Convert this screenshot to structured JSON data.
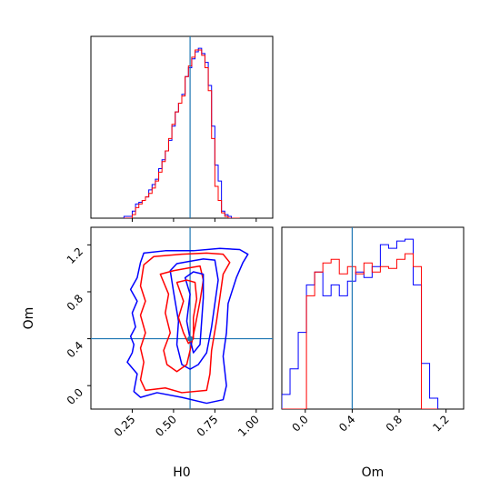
{
  "chart_data": {
    "type": "corner",
    "parameters": [
      "H0",
      "Om"
    ],
    "truths": {
      "H0": 0.6,
      "Om": 0.4
    },
    "colors": {
      "series_a": "#0000ff",
      "series_b": "#ff0000",
      "truth": "#1f77b4"
    },
    "axes": {
      "H0": {
        "range": [
          0.0,
          1.1
        ],
        "ticks": [
          0.25,
          0.5,
          0.75,
          1.0
        ],
        "tick_labels": [
          "0.25",
          "0.50",
          "0.75",
          "1.00"
        ],
        "label": "H0"
      },
      "Om": {
        "range": [
          -0.2,
          1.35
        ],
        "ticks": [
          0.0,
          0.4,
          0.8,
          1.2
        ],
        "tick_labels": [
          "0.0",
          "0.4",
          "0.8",
          "1.2"
        ],
        "label": "Om"
      }
    },
    "hist_h0": {
      "edges": [
        0.2,
        0.25,
        0.27,
        0.29,
        0.31,
        0.33,
        0.35,
        0.37,
        0.39,
        0.41,
        0.43,
        0.45,
        0.47,
        0.49,
        0.51,
        0.53,
        0.55,
        0.57,
        0.59,
        0.61,
        0.63,
        0.65,
        0.67,
        0.69,
        0.71,
        0.73,
        0.75,
        0.77,
        0.79,
        0.81,
        0.83,
        0.85,
        0.87,
        0.9
      ],
      "series": [
        {
          "color": "series_a",
          "counts": [
            0.01,
            0.04,
            0.08,
            0.09,
            0.1,
            0.12,
            0.16,
            0.19,
            0.22,
            0.28,
            0.33,
            0.38,
            0.44,
            0.52,
            0.6,
            0.65,
            0.7,
            0.8,
            0.85,
            0.9,
            0.94,
            0.96,
            0.93,
            0.88,
            0.75,
            0.52,
            0.3,
            0.21,
            0.04,
            0.02,
            0.01,
            0.0,
            0.0
          ]
        },
        {
          "color": "series_b",
          "counts": [
            0.0,
            0.02,
            0.06,
            0.08,
            0.1,
            0.12,
            0.14,
            0.17,
            0.21,
            0.26,
            0.32,
            0.38,
            0.45,
            0.53,
            0.6,
            0.65,
            0.69,
            0.8,
            0.86,
            0.91,
            0.95,
            0.95,
            0.92,
            0.85,
            0.72,
            0.45,
            0.18,
            0.1,
            0.03,
            0.01,
            0.0,
            0.0,
            0.0
          ]
        }
      ]
    },
    "hist_om": {
      "edges": [
        -0.2,
        -0.13,
        -0.06,
        0.01,
        0.08,
        0.15,
        0.22,
        0.29,
        0.36,
        0.43,
        0.5,
        0.57,
        0.64,
        0.71,
        0.78,
        0.85,
        0.92,
        0.99,
        1.06,
        1.13
      ],
      "series": [
        {
          "color": "series_a",
          "counts": [
            0.08,
            0.22,
            0.42,
            0.68,
            0.75,
            0.62,
            0.68,
            0.62,
            0.7,
            0.75,
            0.72,
            0.78,
            0.9,
            0.88,
            0.92,
            0.93,
            0.68,
            0.25,
            0.06
          ]
        },
        {
          "color": "series_b",
          "counts": [
            0.0,
            0.0,
            0.0,
            0.62,
            0.75,
            0.8,
            0.82,
            0.74,
            0.78,
            0.74,
            0.8,
            0.75,
            0.78,
            0.77,
            0.82,
            0.85,
            0.78,
            0.0,
            0.0
          ]
        }
      ]
    },
    "contours": [
      {
        "color": "series_a",
        "points": [
          [
            0.3,
            1.05
          ],
          [
            0.32,
            1.13
          ],
          [
            0.45,
            1.15
          ],
          [
            0.62,
            1.15
          ],
          [
            0.78,
            1.17
          ],
          [
            0.9,
            1.16
          ],
          [
            0.95,
            1.12
          ],
          [
            0.92,
            1.05
          ],
          [
            0.88,
            0.92
          ],
          [
            0.83,
            0.7
          ],
          [
            0.82,
            0.45
          ],
          [
            0.8,
            0.25
          ],
          [
            0.82,
            0.0
          ],
          [
            0.8,
            -0.12
          ],
          [
            0.7,
            -0.15
          ],
          [
            0.55,
            -0.1
          ],
          [
            0.4,
            -0.06
          ],
          [
            0.3,
            -0.1
          ],
          [
            0.26,
            -0.05
          ],
          [
            0.28,
            0.1
          ],
          [
            0.22,
            0.2
          ],
          [
            0.25,
            0.28
          ],
          [
            0.26,
            0.35
          ],
          [
            0.24,
            0.42
          ],
          [
            0.27,
            0.5
          ],
          [
            0.25,
            0.62
          ],
          [
            0.28,
            0.72
          ],
          [
            0.24,
            0.82
          ],
          [
            0.28,
            0.92
          ],
          [
            0.3,
            1.05
          ]
        ]
      },
      {
        "color": "series_b",
        "points": [
          [
            0.32,
            1.03
          ],
          [
            0.38,
            1.1
          ],
          [
            0.55,
            1.12
          ],
          [
            0.7,
            1.13
          ],
          [
            0.8,
            1.12
          ],
          [
            0.84,
            1.05
          ],
          [
            0.8,
            0.95
          ],
          [
            0.78,
            0.75
          ],
          [
            0.76,
            0.55
          ],
          [
            0.73,
            0.3
          ],
          [
            0.72,
            0.1
          ],
          [
            0.7,
            -0.04
          ],
          [
            0.55,
            -0.06
          ],
          [
            0.45,
            -0.02
          ],
          [
            0.33,
            -0.04
          ],
          [
            0.3,
            0.05
          ],
          [
            0.32,
            0.2
          ],
          [
            0.3,
            0.32
          ],
          [
            0.33,
            0.45
          ],
          [
            0.3,
            0.6
          ],
          [
            0.33,
            0.72
          ],
          [
            0.3,
            0.85
          ],
          [
            0.32,
            1.03
          ]
        ]
      },
      {
        "color": "series_a",
        "points": [
          [
            0.48,
            0.98
          ],
          [
            0.5,
            0.8
          ],
          [
            0.53,
            0.55
          ],
          [
            0.52,
            0.35
          ],
          [
            0.55,
            0.18
          ],
          [
            0.6,
            0.14
          ],
          [
            0.65,
            0.18
          ],
          [
            0.7,
            0.28
          ],
          [
            0.73,
            0.5
          ],
          [
            0.75,
            0.7
          ],
          [
            0.77,
            0.9
          ],
          [
            0.75,
            1.07
          ],
          [
            0.68,
            1.08
          ],
          [
            0.6,
            1.06
          ],
          [
            0.52,
            1.04
          ],
          [
            0.48,
            0.98
          ]
        ]
      },
      {
        "color": "series_b",
        "points": [
          [
            0.42,
            0.95
          ],
          [
            0.47,
            0.78
          ],
          [
            0.45,
            0.62
          ],
          [
            0.48,
            0.45
          ],
          [
            0.44,
            0.3
          ],
          [
            0.46,
            0.18
          ],
          [
            0.52,
            0.12
          ],
          [
            0.58,
            0.18
          ],
          [
            0.6,
            0.3
          ],
          [
            0.63,
            0.5
          ],
          [
            0.66,
            0.72
          ],
          [
            0.68,
            0.9
          ],
          [
            0.66,
            1.02
          ],
          [
            0.58,
            1.0
          ],
          [
            0.5,
            0.98
          ],
          [
            0.42,
            0.95
          ]
        ]
      },
      {
        "color": "series_a",
        "points": [
          [
            0.57,
            0.92
          ],
          [
            0.6,
            0.78
          ],
          [
            0.58,
            0.55
          ],
          [
            0.6,
            0.4
          ],
          [
            0.62,
            0.28
          ],
          [
            0.66,
            0.35
          ],
          [
            0.67,
            0.55
          ],
          [
            0.68,
            0.75
          ],
          [
            0.68,
            0.95
          ],
          [
            0.62,
            0.97
          ],
          [
            0.57,
            0.92
          ]
        ]
      },
      {
        "color": "series_b",
        "points": [
          [
            0.52,
            0.88
          ],
          [
            0.56,
            0.72
          ],
          [
            0.53,
            0.58
          ],
          [
            0.56,
            0.45
          ],
          [
            0.59,
            0.36
          ],
          [
            0.62,
            0.4
          ],
          [
            0.62,
            0.58
          ],
          [
            0.64,
            0.74
          ],
          [
            0.63,
            0.88
          ],
          [
            0.58,
            0.9
          ],
          [
            0.52,
            0.88
          ]
        ]
      }
    ]
  }
}
